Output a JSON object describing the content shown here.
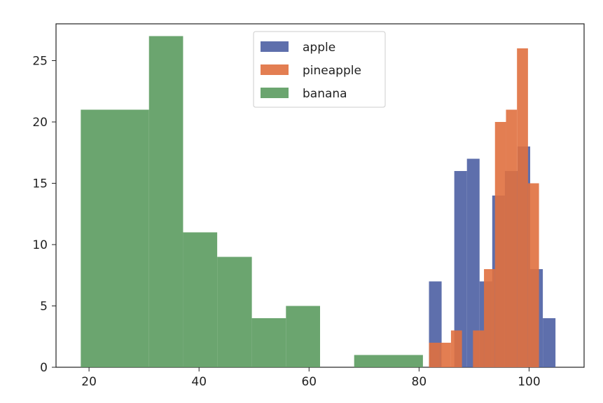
{
  "chart_data": {
    "type": "histogram",
    "title": "",
    "xlabel": "",
    "ylabel": "",
    "xlim": [
      14,
      110
    ],
    "ylim": [
      0,
      28
    ],
    "xticks": [
      20,
      40,
      60,
      80,
      100
    ],
    "yticks": [
      0,
      5,
      10,
      15,
      20,
      25
    ],
    "grid": false,
    "legend_position": "top-center",
    "legend": [
      "apple",
      "pineapple",
      "banana"
    ],
    "series": [
      {
        "name": "apple",
        "color": "#4c5fa3",
        "alpha": 0.9,
        "bin_edges": [
          81.8,
          84.1,
          86.4,
          88.7,
          91.0,
          93.3,
          95.6,
          97.9,
          100.2,
          102.5,
          104.8
        ],
        "counts": [
          7,
          0,
          16,
          17,
          7,
          14,
          16,
          18,
          8,
          4
        ]
      },
      {
        "name": "pineapple",
        "color": "#e0703f",
        "alpha": 0.9,
        "bin_edges": [
          81.8,
          83.8,
          85.8,
          87.8,
          89.8,
          91.8,
          93.8,
          95.8,
          97.8,
          99.8,
          101.8
        ],
        "counts": [
          2,
          2,
          3,
          0,
          3,
          8,
          20,
          21,
          26,
          15
        ]
      },
      {
        "name": "banana",
        "color": "#5b9b5f",
        "alpha": 0.9,
        "bin_edges": [
          18.5,
          30.9,
          37.1,
          43.3,
          49.6,
          55.8,
          62.0,
          68.2,
          80.7
        ],
        "counts": [
          21,
          27,
          11,
          9,
          4,
          5,
          0,
          1
        ]
      }
    ]
  }
}
